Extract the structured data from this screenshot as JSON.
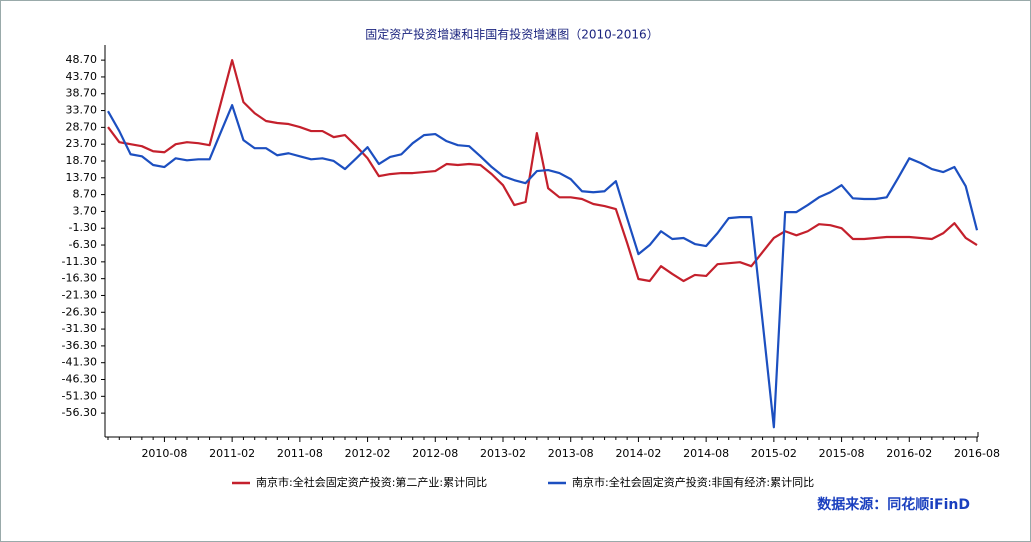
{
  "chart_data": {
    "type": "line",
    "title": "固定资产投资增速和非国有投资增速图（2010-2016）",
    "source": "数据来源：同花顺iFinD",
    "categories": [
      null,
      null,
      null,
      null,
      null,
      "2010-08",
      null,
      null,
      null,
      null,
      null,
      "2011-02",
      null,
      null,
      null,
      null,
      null,
      "2011-08",
      null,
      null,
      null,
      null,
      null,
      "2012-02",
      null,
      null,
      null,
      null,
      null,
      "2012-08",
      null,
      null,
      null,
      null,
      null,
      "2013-02",
      null,
      null,
      null,
      null,
      null,
      "2013-08",
      null,
      null,
      null,
      null,
      null,
      "2014-02",
      null,
      null,
      null,
      null,
      null,
      "2014-08",
      null,
      null,
      null,
      null,
      null,
      "2015-02",
      null,
      null,
      null,
      null,
      null,
      "2015-08",
      null,
      null,
      null,
      null,
      null,
      "2016-02",
      null,
      null,
      null,
      null,
      null,
      "2016-08"
    ],
    "ylim": [
      -63.4,
      53.2
    ],
    "yticks": [
      {
        "value": 48.7,
        "label": "48.70"
      },
      {
        "value": 43.7,
        "label": "43.70"
      },
      {
        "value": 38.7,
        "label": "38.70"
      },
      {
        "value": 33.7,
        "label": "33.70"
      },
      {
        "value": 28.7,
        "label": "28.70"
      },
      {
        "value": 23.7,
        "label": "23.70"
      },
      {
        "value": 18.7,
        "label": "18.70"
      },
      {
        "value": 13.7,
        "label": "13.70"
      },
      {
        "value": 8.7,
        "label": "8.70"
      },
      {
        "value": 3.7,
        "label": "3.70"
      },
      {
        "value": -1.3,
        "label": "-1.30"
      },
      {
        "value": -6.3,
        "label": "-6.30"
      },
      {
        "value": -11.3,
        "label": "-11.30"
      },
      {
        "value": -16.3,
        "label": "-16.30"
      },
      {
        "value": -21.3,
        "label": "-21.30"
      },
      {
        "value": -26.3,
        "label": "-26.30"
      },
      {
        "value": -31.3,
        "label": "-31.30"
      },
      {
        "value": -36.3,
        "label": "-36.30"
      },
      {
        "value": -41.3,
        "label": "-41.30"
      },
      {
        "value": -46.3,
        "label": "-46.30"
      },
      {
        "value": -51.3,
        "label": "-51.30"
      },
      {
        "value": -56.3,
        "label": "-56.30"
      }
    ],
    "series": [
      {
        "name": "南京市:全社会固定资产投资:第二产业:累计同比",
        "color": "#c4202c",
        "values": [
          28.8,
          24.3,
          23.7,
          23.1,
          21.6,
          21.3,
          23.7,
          24.3,
          24.0,
          23.4,
          36.0,
          48.7,
          36.2,
          32.9,
          30.6,
          30.0,
          29.7,
          28.8,
          27.6,
          27.6,
          25.8,
          26.4,
          23.1,
          19.5,
          14.2,
          14.8,
          15.1,
          15.1,
          15.4,
          15.7,
          17.8,
          17.5,
          17.8,
          17.5,
          14.8,
          11.5,
          5.6,
          6.5,
          27.0,
          10.6,
          7.9,
          7.9,
          7.4,
          5.9,
          5.3,
          4.4,
          -5.7,
          -16.4,
          -17.0,
          -12.6,
          -14.9,
          -17.0,
          -15.2,
          -15.5,
          -12.0,
          -11.7,
          -11.4,
          -12.6,
          -8.4,
          -4.2,
          -2.2,
          -3.4,
          -2.2,
          -0.1,
          -0.4,
          -1.3,
          -4.5,
          -4.5,
          -4.2,
          -3.9,
          -3.9,
          -3.9,
          -4.2,
          -4.5,
          -2.8,
          0.2,
          -4.2,
          -6.3
        ]
      },
      {
        "name": "南京市:全社会固定资产投资:非国有经济:累计同比",
        "color": "#1c4fc0",
        "values": [
          33.5,
          27.6,
          20.7,
          20.1,
          17.5,
          16.9,
          19.5,
          18.9,
          19.2,
          19.2,
          27.3,
          35.3,
          24.9,
          22.5,
          22.5,
          20.4,
          21.0,
          20.1,
          19.2,
          19.5,
          18.7,
          16.3,
          19.5,
          22.8,
          17.8,
          19.9,
          20.7,
          24.0,
          26.4,
          26.7,
          24.6,
          23.4,
          23.1,
          20.1,
          16.9,
          14.2,
          13.0,
          12.1,
          15.7,
          16.0,
          15.1,
          13.3,
          9.7,
          9.4,
          9.7,
          12.7,
          1.7,
          -9.0,
          -6.3,
          -2.2,
          -4.5,
          -4.2,
          -6.0,
          -6.6,
          -2.8,
          1.7,
          2.0,
          2.0,
          -29.0,
          -60.5,
          3.5,
          3.5,
          5.6,
          7.9,
          9.4,
          11.5,
          7.6,
          7.4,
          7.4,
          7.9,
          13.6,
          19.5,
          18.1,
          16.3,
          15.4,
          16.9,
          11.2,
          -1.9
        ]
      }
    ]
  }
}
